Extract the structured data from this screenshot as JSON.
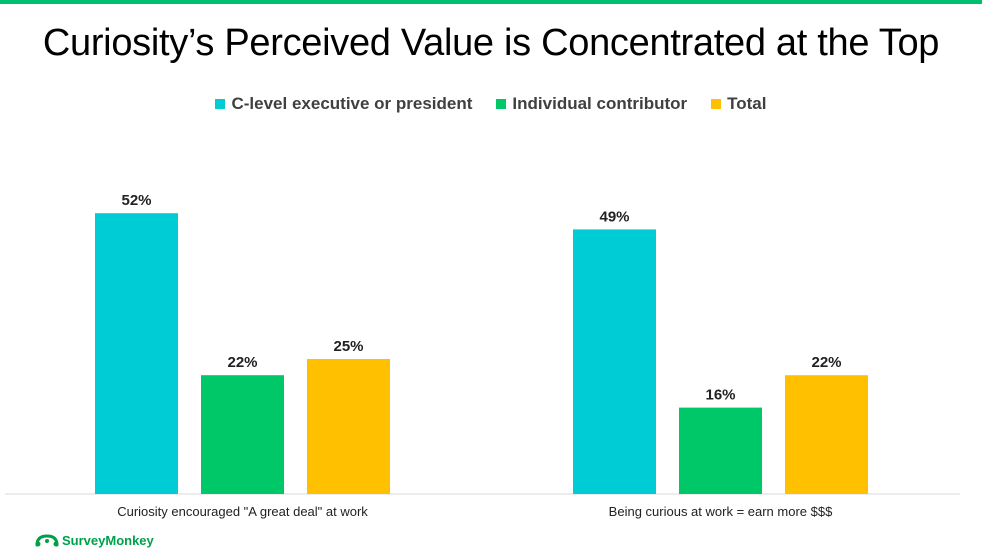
{
  "page": {
    "title": "Curiosity’s Perceived Value is Concentrated at the Top",
    "accent_color": "#00bf6f",
    "brand_label": "SurveyMonkey"
  },
  "chart_data": {
    "type": "bar",
    "title": "Curiosity’s Perceived Value is Concentrated at the Top",
    "xlabel": "",
    "ylabel": "",
    "categories": [
      "Curiosity encouraged \"A great deal\" at work",
      "Being curious at work = earn more $$$"
    ],
    "series": [
      {
        "name": "C-level executive or president",
        "color": "#00ccd6",
        "values": [
          52,
          49
        ],
        "labels": [
          "52%",
          "49%"
        ]
      },
      {
        "name": "Individual contributor",
        "color": "#00c768",
        "values": [
          22,
          16
        ],
        "labels": [
          "22%",
          "16%"
        ]
      },
      {
        "name": "Total",
        "color": "#ffc000",
        "values": [
          25,
          22
        ],
        "labels": [
          "25%",
          "22%"
        ]
      }
    ],
    "ylim": [
      0,
      60
    ],
    "grid": false,
    "legend_position": "top-center"
  }
}
